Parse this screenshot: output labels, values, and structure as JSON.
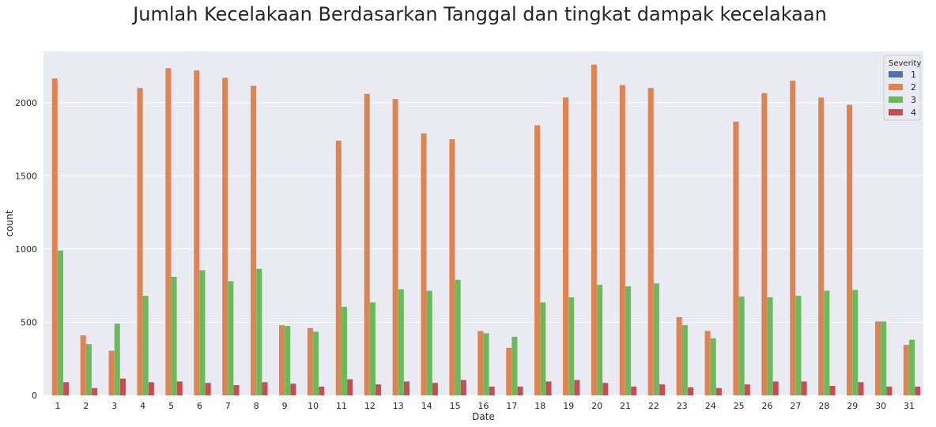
{
  "chart_data": {
    "type": "bar",
    "title": "Jumlah Kecelakaan Berdasarkan Tanggal dan tingkat dampak kecelakaan",
    "xlabel": "Date",
    "ylabel": "count",
    "ylim": [
      0,
      2350
    ],
    "yticks": [
      0,
      500,
      1000,
      1500,
      2000
    ],
    "grid": true,
    "legend_title": "Severity",
    "legend_position": "top-right",
    "categories": [
      "1",
      "2",
      "3",
      "4",
      "5",
      "6",
      "7",
      "8",
      "9",
      "10",
      "11",
      "12",
      "13",
      "14",
      "15",
      "16",
      "17",
      "18",
      "19",
      "20",
      "21",
      "22",
      "23",
      "24",
      "25",
      "26",
      "27",
      "28",
      "29",
      "30",
      "31"
    ],
    "series": [
      {
        "name": "1",
        "color": "#4c72b0",
        "values": [
          0,
          0,
          0,
          0,
          0,
          0,
          0,
          0,
          0,
          0,
          0,
          0,
          0,
          0,
          0,
          0,
          0,
          0,
          0,
          0,
          0,
          0,
          0,
          0,
          0,
          0,
          0,
          0,
          0,
          0,
          0
        ]
      },
      {
        "name": "2",
        "color": "#dd8452",
        "values": [
          2165,
          410,
          305,
          2100,
          2235,
          2220,
          2170,
          2115,
          480,
          460,
          1740,
          2060,
          2025,
          1790,
          1750,
          440,
          325,
          1845,
          2035,
          2260,
          2120,
          2100,
          535,
          440,
          1870,
          2065,
          2150,
          2035,
          1985,
          505,
          345
        ]
      },
      {
        "name": "3",
        "color": "#6aba5c",
        "values": [
          990,
          350,
          490,
          680,
          810,
          855,
          780,
          865,
          475,
          435,
          605,
          635,
          725,
          715,
          790,
          425,
          400,
          635,
          670,
          755,
          745,
          765,
          480,
          390,
          675,
          670,
          680,
          715,
          720,
          505,
          380
        ]
      },
      {
        "name": "4",
        "color": "#c44e52",
        "values": [
          90,
          50,
          115,
          90,
          95,
          85,
          70,
          90,
          80,
          60,
          110,
          75,
          95,
          85,
          105,
          60,
          60,
          95,
          105,
          85,
          60,
          75,
          55,
          50,
          75,
          95,
          95,
          65,
          90,
          60,
          60
        ]
      }
    ]
  }
}
